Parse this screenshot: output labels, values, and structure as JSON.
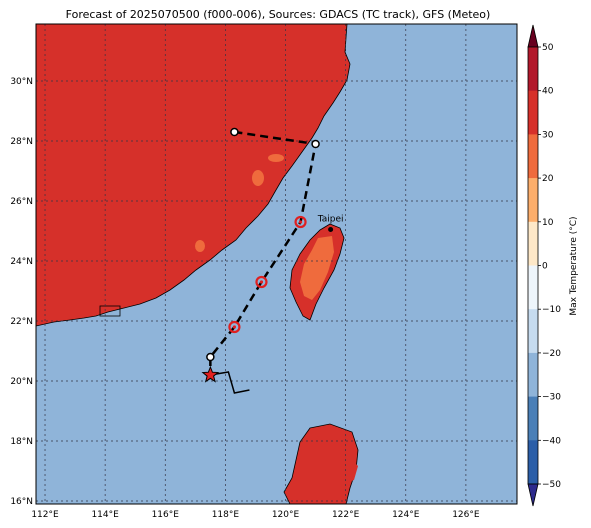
{
  "title": "Forecast of 2025070500 (f000-006), Sources: GDACS (TC track), GFS (Meteo)",
  "map": {
    "lon_range": [
      111.7,
      127.7
    ],
    "lat_range": [
      15.9,
      31.9
    ],
    "lon_ticks": [
      "112°E",
      "114°E",
      "116°E",
      "118°E",
      "120°E",
      "122°E",
      "124°E",
      "126°E"
    ],
    "lat_ticks": [
      "16°N",
      "18°N",
      "20°N",
      "22°N",
      "24°N",
      "26°N",
      "28°N",
      "30°N"
    ],
    "grid": true,
    "ocean_color": "#8fb4d9",
    "land_color": "#d6302a",
    "land_warm_color": "#ef6b3d",
    "city_label": "Taipei"
  },
  "track": {
    "points": [
      [
        118.3,
        28.3
      ],
      [
        121.0,
        27.9
      ],
      [
        120.5,
        25.3
      ],
      [
        119.2,
        23.3
      ],
      [
        118.3,
        21.8
      ],
      [
        117.5,
        20.8
      ],
      [
        117.5,
        20.2
      ]
    ],
    "current_position": [
      117.5,
      20.2
    ],
    "extra_path": [
      [
        117.5,
        20.2
      ],
      [
        118.1,
        20.3
      ],
      [
        118.3,
        19.6
      ],
      [
        118.8,
        19.7
      ]
    ]
  },
  "colorbar": {
    "label": "Max Temperature (°C)",
    "ticks": [
      "50",
      "40",
      "30",
      "20",
      "10",
      "0",
      "−10",
      "−20",
      "−30",
      "−40",
      "−50"
    ],
    "colors": [
      "#67001f",
      "#b2182b",
      "#d6302a",
      "#ef6b3d",
      "#fdae6b",
      "#fee8c8",
      "#eef5fb",
      "#c6dbef",
      "#8fb4d9",
      "#4a7fb7",
      "#2b5ea8",
      "#2d2a8c"
    ]
  }
}
